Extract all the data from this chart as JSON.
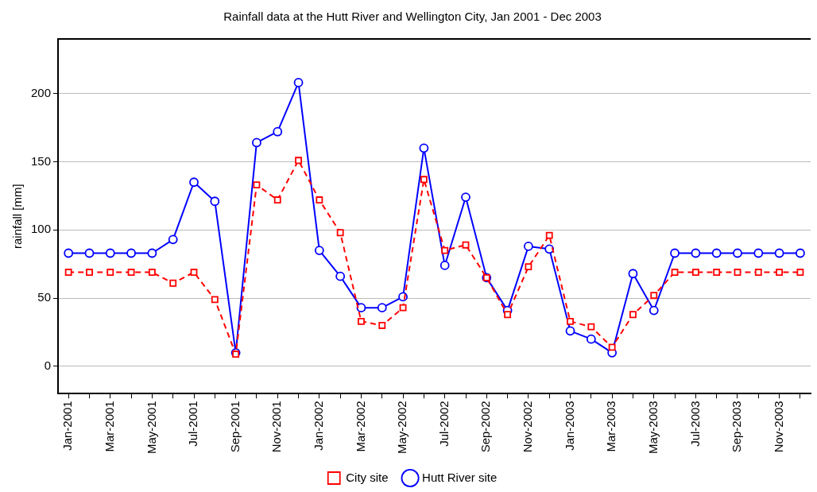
{
  "chart_data": {
    "type": "line",
    "title": "Rainfall data at the Hutt River and Wellington City, Jan 2001 - Dec 2003",
    "ylabel": "rainfall [mm]",
    "categories": [
      "Jan-2001",
      null,
      "Mar-2001",
      null,
      "May-2001",
      null,
      "Jul-2001",
      null,
      "Sep-2001",
      null,
      "Nov-2001",
      null,
      "Jan-2002",
      null,
      "Mar-2002",
      null,
      "May-2002",
      null,
      "Jul-2002",
      null,
      "Sep-2002",
      null,
      "Nov-2002",
      null,
      "Jan-2003",
      null,
      "Mar-2003",
      null,
      "May-2003",
      null,
      "Jul-2003",
      null,
      "Sep-2003",
      null,
      "Nov-2003",
      null
    ],
    "series": [
      {
        "name": "Hutt River site",
        "color": "#0000ff",
        "marker": "circle",
        "line_style": "solid",
        "values": [
          83,
          83,
          83,
          83,
          83,
          93,
          135,
          121,
          10,
          164,
          172,
          208,
          85,
          66,
          43,
          43,
          51,
          160,
          74,
          124,
          65,
          41,
          88,
          86,
          26,
          20,
          10,
          68,
          41,
          83,
          83,
          83,
          83,
          83,
          83,
          83
        ]
      },
      {
        "name": "City site",
        "color": "#ff0000",
        "marker": "square",
        "line_style": "dashed",
        "values": [
          69,
          69,
          69,
          69,
          69,
          61,
          69,
          49,
          9,
          133,
          122,
          151,
          122,
          98,
          33,
          30,
          43,
          137,
          85,
          89,
          65,
          38,
          73,
          96,
          33,
          29,
          14,
          38,
          52,
          69,
          69,
          69,
          69,
          69,
          69,
          69
        ]
      }
    ],
    "ylim": [
      -20,
      240
    ],
    "yticks": [
      0,
      50,
      100,
      150,
      200
    ],
    "grid": "y",
    "legend": "bottom"
  }
}
